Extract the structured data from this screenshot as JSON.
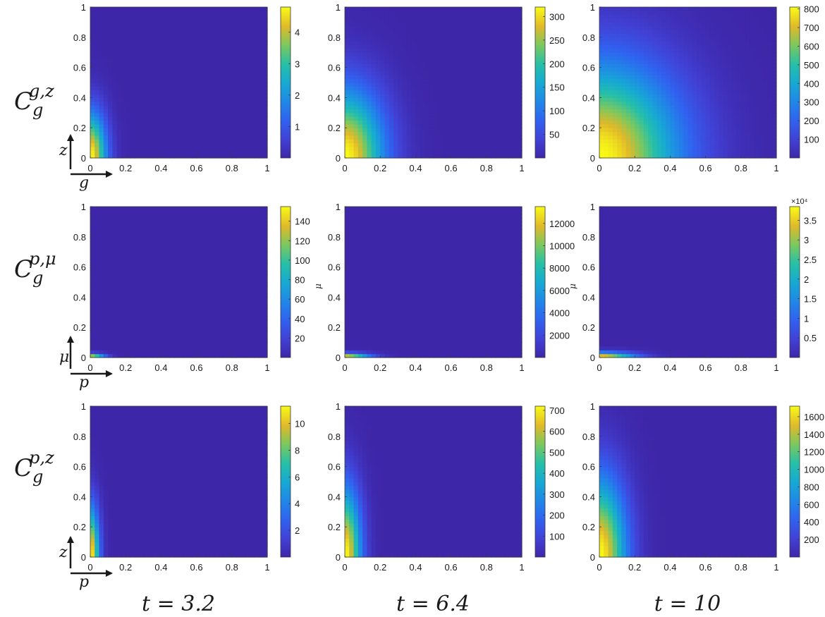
{
  "figure": {
    "row_labels": [
      {
        "base": "C",
        "sub": "g",
        "sup": "g,z"
      },
      {
        "base": "C",
        "sub": "g",
        "sup": "p,μ"
      },
      {
        "base": "C",
        "sub": "g",
        "sup": "p,z"
      }
    ],
    "column_labels": [
      "t = 3.2",
      "t = 6.4",
      "t = 10"
    ],
    "axis_arrows": [
      {
        "y": "z",
        "x": "g"
      },
      {
        "y": "μ",
        "x": "p"
      },
      {
        "y": "z",
        "x": "p"
      }
    ],
    "small_ylabels": [
      "",
      "μ",
      "μ"
    ]
  },
  "chart_data": [
    {
      "type": "heatmap",
      "row": 0,
      "col": 0,
      "xlim": [
        0,
        1
      ],
      "ylim": [
        0,
        1
      ],
      "xticks": [
        "0",
        "0.2",
        "0.4",
        "0.6",
        "0.8",
        "1"
      ],
      "yticks": [
        "0",
        "0.2",
        "0.4",
        "0.6",
        "0.8",
        "1"
      ],
      "ylabel": "",
      "colormap": "parula",
      "colorbar": {
        "range": [
          0,
          4.8
        ],
        "ticks": [
          "1",
          "2",
          "3",
          "4"
        ],
        "exponent": ""
      },
      "field": {
        "shape": "radial",
        "sx": 0.09,
        "sy": 0.3
      }
    },
    {
      "type": "heatmap",
      "row": 0,
      "col": 1,
      "xlim": [
        0,
        1
      ],
      "ylim": [
        0,
        1
      ],
      "xticks": [
        "0",
        "0.2",
        "0.4",
        "0.6",
        "0.8",
        "1"
      ],
      "yticks": [
        "0",
        "0.2",
        "0.4",
        "0.6",
        "0.8",
        "1"
      ],
      "ylabel": "",
      "colormap": "parula",
      "colorbar": {
        "range": [
          0,
          320
        ],
        "ticks": [
          "50",
          "100",
          "150",
          "200",
          "250",
          "300"
        ],
        "exponent": ""
      },
      "field": {
        "shape": "radial",
        "sx": 0.22,
        "sy": 0.45
      }
    },
    {
      "type": "heatmap",
      "row": 0,
      "col": 2,
      "xlim": [
        0,
        1
      ],
      "ylim": [
        0,
        1
      ],
      "xticks": [
        "0",
        "0.2",
        "0.4",
        "0.6",
        "0.8",
        "1"
      ],
      "yticks": [
        "0",
        "0.2",
        "0.4",
        "0.6",
        "0.8",
        "1"
      ],
      "ylabel": "",
      "colormap": "parula",
      "colorbar": {
        "range": [
          0,
          810
        ],
        "ticks": [
          "100",
          "200",
          "300",
          "400",
          "500",
          "600",
          "700",
          "800"
        ],
        "exponent": ""
      },
      "field": {
        "shape": "radial",
        "sx": 0.45,
        "sy": 0.62
      }
    },
    {
      "type": "heatmap",
      "row": 1,
      "col": 0,
      "xlim": [
        0,
        1
      ],
      "ylim": [
        0,
        1
      ],
      "xticks": [
        "0",
        "0.2",
        "0.4",
        "0.6",
        "0.8",
        "1"
      ],
      "yticks": [
        "0",
        "0.2",
        "0.4",
        "0.6",
        "0.8",
        "1"
      ],
      "ylabel": "",
      "colormap": "parula",
      "colorbar": {
        "range": [
          0,
          155
        ],
        "ticks": [
          "20",
          "40",
          "60",
          "80",
          "100",
          "120",
          "140"
        ],
        "exponent": ""
      },
      "field": {
        "shape": "band",
        "sx": 0.08,
        "sy": 0.025
      }
    },
    {
      "type": "heatmap",
      "row": 1,
      "col": 1,
      "xlim": [
        0,
        1
      ],
      "ylim": [
        0,
        1
      ],
      "xticks": [
        "0",
        "0.2",
        "0.4",
        "0.6",
        "0.8",
        "1"
      ],
      "yticks": [
        "0",
        "0.2",
        "0.4",
        "0.6",
        "0.8",
        "1"
      ],
      "ylabel": "μ",
      "colormap": "parula",
      "colorbar": {
        "range": [
          0,
          13500
        ],
        "ticks": [
          "2000",
          "4000",
          "6000",
          "8000",
          "10000",
          "12000"
        ],
        "exponent": ""
      },
      "field": {
        "shape": "band",
        "sx": 0.14,
        "sy": 0.028
      }
    },
    {
      "type": "heatmap",
      "row": 1,
      "col": 2,
      "xlim": [
        0,
        1
      ],
      "ylim": [
        0,
        1
      ],
      "xticks": [
        "0",
        "0.2",
        "0.4",
        "0.6",
        "0.8",
        "1"
      ],
      "yticks": [
        "0",
        "0.2",
        "0.4",
        "0.6",
        "0.8",
        "1"
      ],
      "ylabel": "μ",
      "colormap": "parula",
      "colorbar": {
        "range": [
          0,
          3.85
        ],
        "ticks": [
          "0.5",
          "1",
          "1.5",
          "2",
          "2.5",
          "3",
          "3.5"
        ],
        "exponent": "×10⁴"
      },
      "field": {
        "shape": "band",
        "sx": 0.2,
        "sy": 0.035
      }
    },
    {
      "type": "heatmap",
      "row": 2,
      "col": 0,
      "xlim": [
        0,
        1
      ],
      "ylim": [
        0,
        1
      ],
      "xticks": [
        "0",
        "0.2",
        "0.4",
        "0.6",
        "0.8",
        "1"
      ],
      "yticks": [
        "0",
        "0.2",
        "0.4",
        "0.6",
        "0.8",
        "1"
      ],
      "ylabel": "",
      "colormap": "parula",
      "colorbar": {
        "range": [
          0,
          11.3
        ],
        "ticks": [
          "2",
          "4",
          "6",
          "8",
          "10"
        ],
        "exponent": ""
      },
      "field": {
        "shape": "radial",
        "sx": 0.05,
        "sy": 0.33
      }
    },
    {
      "type": "heatmap",
      "row": 2,
      "col": 1,
      "xlim": [
        0,
        1
      ],
      "ylim": [
        0,
        1
      ],
      "xticks": [
        "0",
        "0.2",
        "0.4",
        "0.6",
        "0.8",
        "1"
      ],
      "yticks": [
        "0",
        "0.2",
        "0.4",
        "0.6",
        "0.8",
        "1"
      ],
      "ylabel": "",
      "colormap": "parula",
      "colorbar": {
        "range": [
          0,
          720
        ],
        "ticks": [
          "100",
          "200",
          "300",
          "400",
          "500",
          "600",
          "700"
        ],
        "exponent": ""
      },
      "field": {
        "shape": "radial",
        "sx": 0.09,
        "sy": 0.45
      }
    },
    {
      "type": "heatmap",
      "row": 2,
      "col": 2,
      "xlim": [
        0,
        1
      ],
      "ylim": [
        0,
        1
      ],
      "xticks": [
        "0",
        "0.2",
        "0.4",
        "0.6",
        "0.8",
        "1"
      ],
      "yticks": [
        "0",
        "0.2",
        "0.4",
        "0.6",
        "0.8",
        "1"
      ],
      "ylabel": "",
      "colormap": "parula",
      "colorbar": {
        "range": [
          0,
          1720
        ],
        "ticks": [
          "200",
          "400",
          "600",
          "800",
          "1000",
          "1200",
          "1400",
          "1600"
        ],
        "exponent": ""
      },
      "field": {
        "shape": "radial",
        "sx": 0.15,
        "sy": 0.52
      }
    }
  ]
}
